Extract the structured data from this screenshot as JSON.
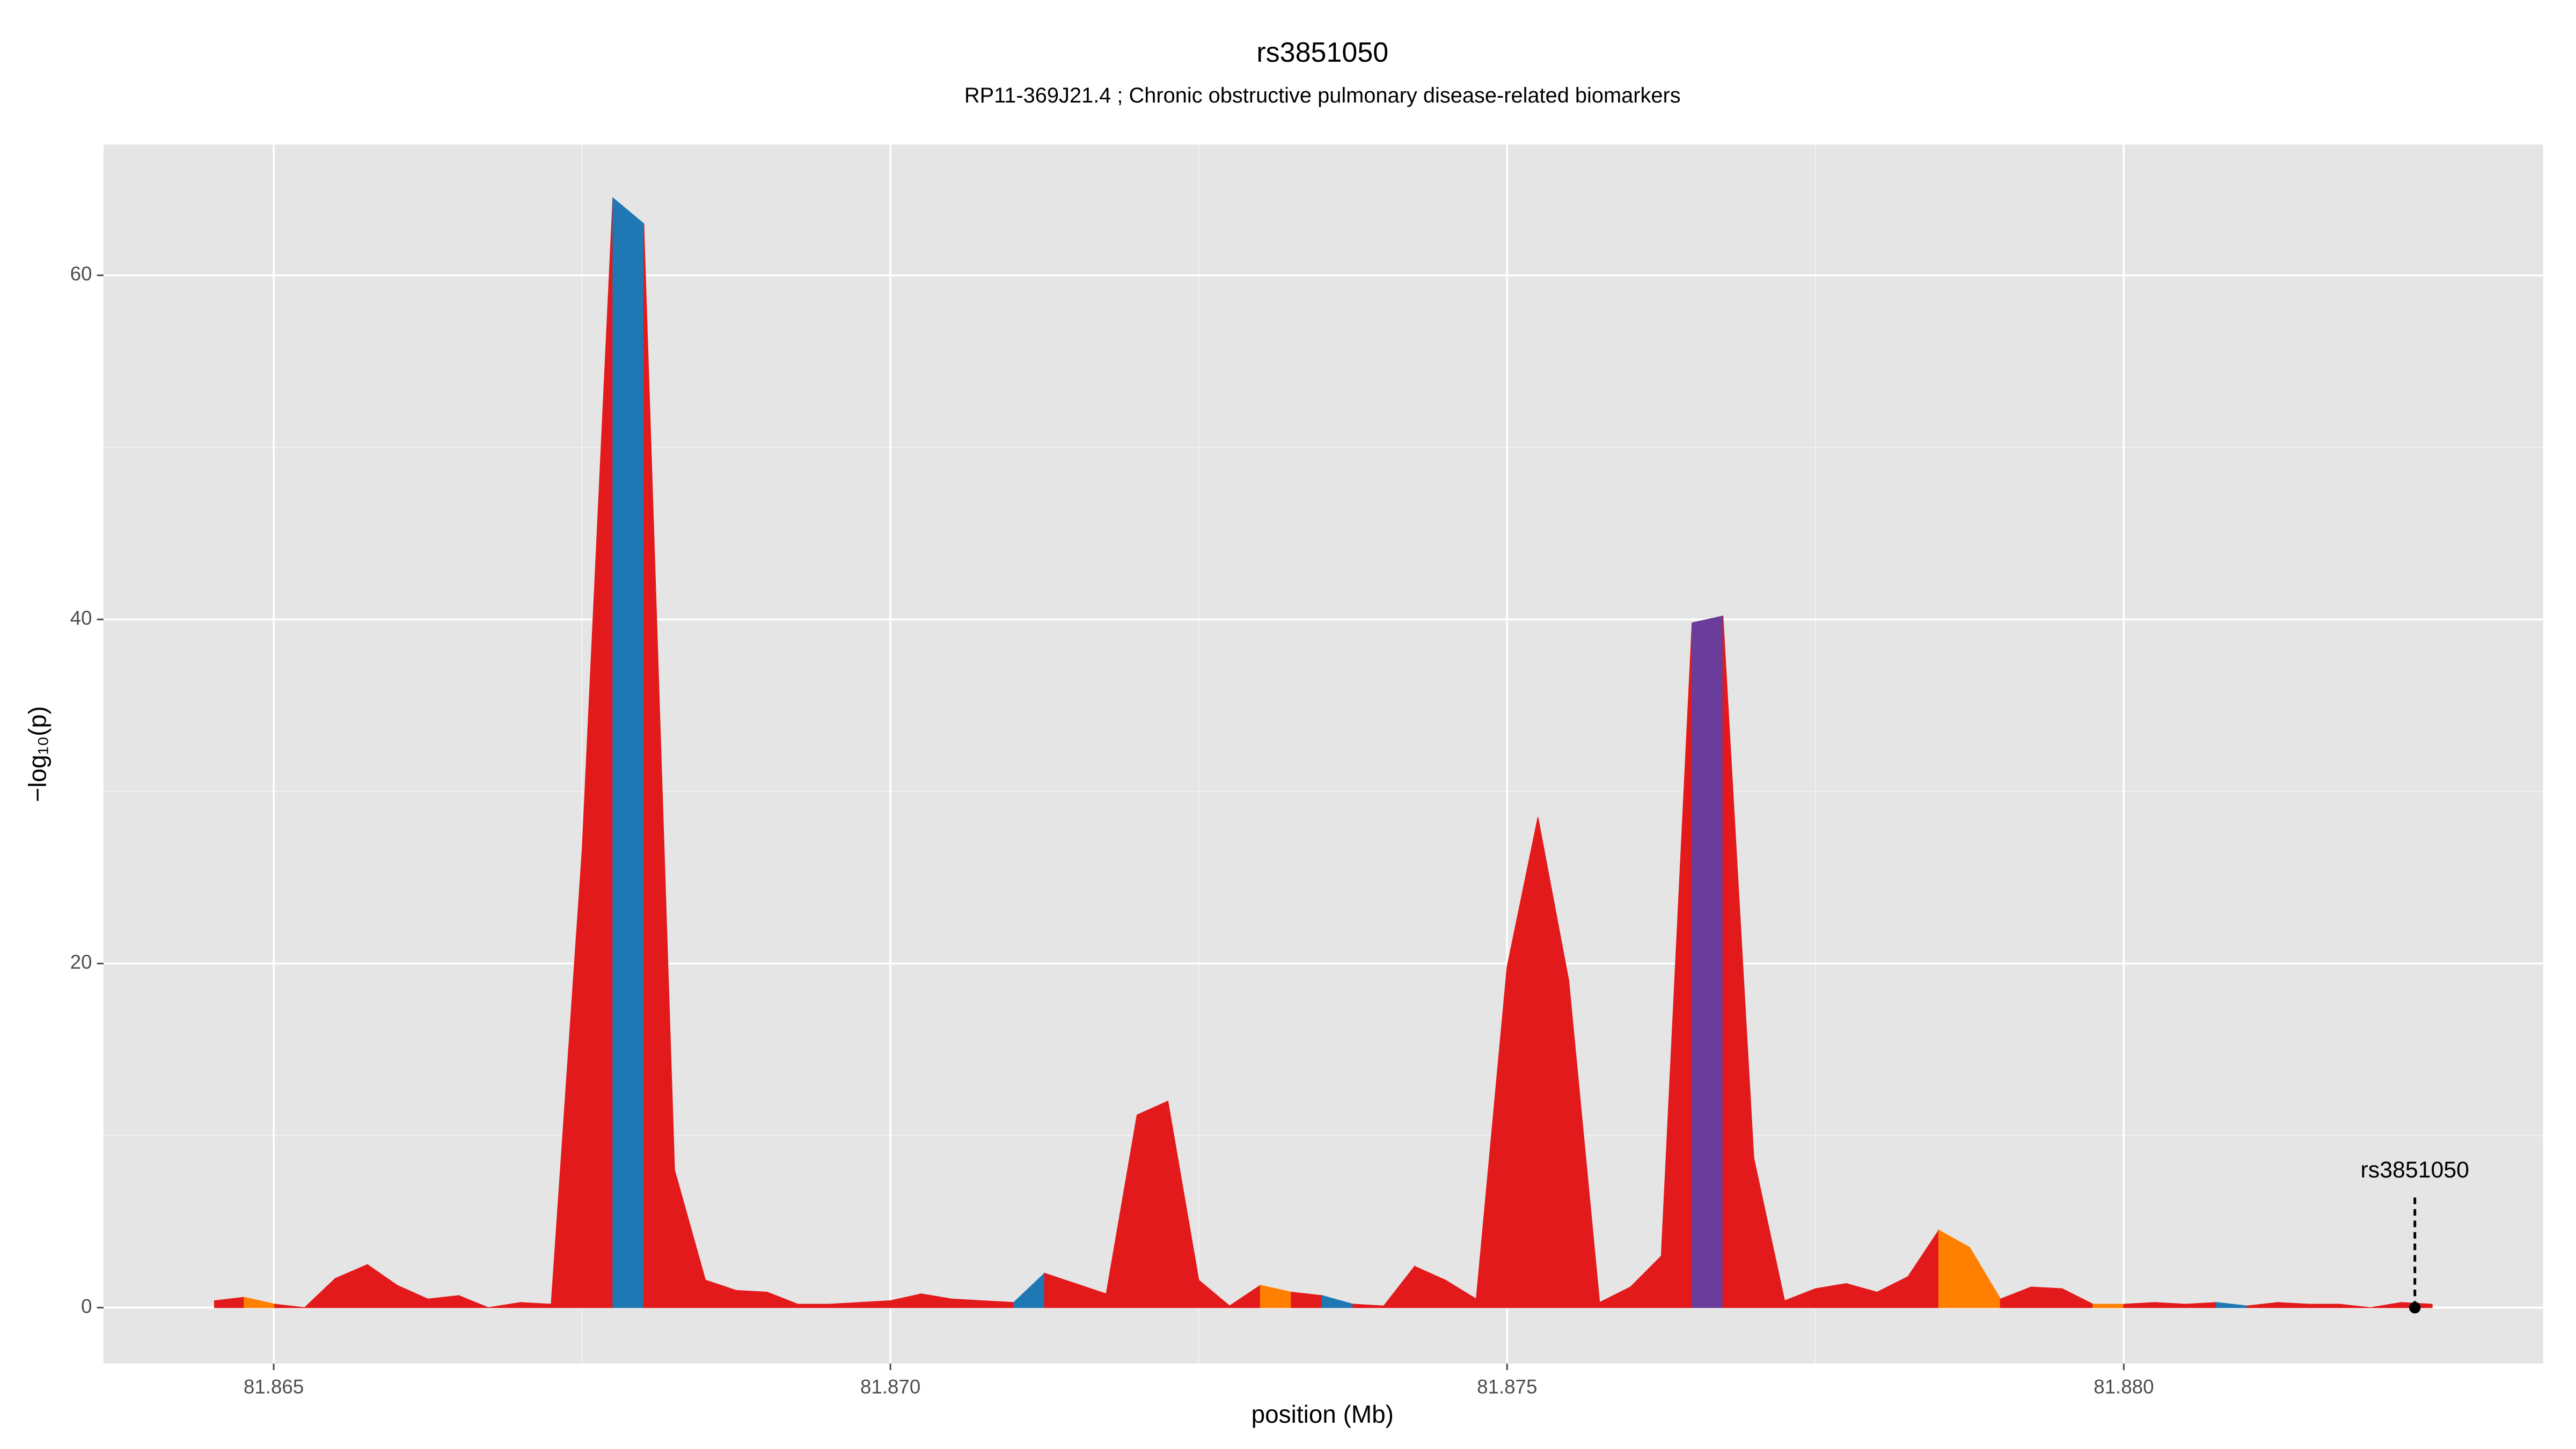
{
  "chart_data": {
    "type": "area",
    "title": "rs3851050",
    "subtitle": "RP11-369J21.4 ; Chronic obstructive pulmonary disease-related biomarkers",
    "xlabel": "position (Mb)",
    "ylabel": "−log₁₀(p)",
    "xlim": [
      81.86362,
      81.8834
    ],
    "ylim": [
      -3.25,
      67.6
    ],
    "xticks": [
      81.865,
      {
        "value": 81.87,
        "label": "81.870"
      },
      81.875,
      {
        "value": 81.88,
        "label": "81.880"
      }
    ],
    "yticks": [
      0,
      20,
      40,
      60
    ],
    "grid": true,
    "x": [
      81.86452,
      81.86476,
      81.86501,
      81.86525,
      81.8655,
      81.86576,
      81.866,
      81.86625,
      81.8665,
      81.86674,
      81.867,
      81.86725,
      81.8675,
      81.86775,
      81.868,
      81.86825,
      81.8685,
      81.86875,
      81.869,
      81.86925,
      81.8695,
      81.86975,
      81.87,
      81.87025,
      81.8705,
      81.87075,
      81.871,
      81.87125,
      81.8715,
      81.87175,
      81.872,
      81.87225,
      81.8725,
      81.87275,
      81.873,
      81.87325,
      81.8735,
      81.87375,
      81.874,
      81.87425,
      81.8745,
      81.87475,
      81.875,
      81.87525,
      81.8755,
      81.87575,
      81.876,
      81.87625,
      81.8765,
      81.87675,
      81.877,
      81.87725,
      81.8775,
      81.87775,
      81.878,
      81.87825,
      81.8785,
      81.87875,
      81.879,
      81.87925,
      81.8795,
      81.87975,
      81.88,
      81.88025,
      81.8805,
      81.88075,
      81.881,
      81.88125,
      81.8815,
      81.88175,
      81.882,
      81.88225,
      81.8825
    ],
    "values": [
      0.4,
      0.6,
      0.2,
      0,
      1.7,
      2.5,
      1.3,
      0.5,
      0.7,
      0,
      0.3,
      0.2,
      26.5,
      64.5,
      63,
      8,
      1.6,
      1.0,
      0.9,
      0.2,
      0.2,
      0.3,
      0.4,
      0.8,
      0.5,
      0.4,
      0.3,
      2.0,
      1.4,
      0.8,
      11.2,
      12,
      1.6,
      0.1,
      1.3,
      0.9,
      0.7,
      0.2,
      0.1,
      2.4,
      1.6,
      0.5,
      19.8,
      28.5,
      19,
      0.3,
      1.2,
      3.0,
      39.8,
      40.2,
      8.7,
      0.4,
      1.1,
      1.4,
      0.9,
      1.8,
      4.5,
      3.5,
      0.5,
      1.2,
      1.1,
      0.2,
      0.2,
      0.3,
      0.2,
      0.3,
      0.1,
      0.3,
      0.2,
      0.2,
      0.0,
      0.3,
      0.2
    ],
    "segment_colors": [
      "#e31a1c",
      "#ff7f00",
      "#e31a1c",
      "#e31a1c",
      "#e31a1c",
      "#e31a1c",
      "#e31a1c",
      "#e31a1c",
      "#e31a1c",
      "#e31a1c",
      "#e31a1c",
      "#e31a1c",
      "#e31a1c",
      "#1f78b4",
      "#e31a1c",
      "#e31a1c",
      "#e31a1c",
      "#e31a1c",
      "#e31a1c",
      "#e31a1c",
      "#e31a1c",
      "#e31a1c",
      "#e31a1c",
      "#e31a1c",
      "#e31a1c",
      "#e31a1c",
      "#1f78b4",
      "#e31a1c",
      "#e31a1c",
      "#e31a1c",
      "#e31a1c",
      "#e31a1c",
      "#e31a1c",
      "#e31a1c",
      "#ff7f00",
      "#e31a1c",
      "#1f78b4",
      "#e31a1c",
      "#e31a1c",
      "#e31a1c",
      "#e31a1c",
      "#e31a1c",
      "#e31a1c",
      "#e31a1c",
      "#e31a1c",
      "#e31a1c",
      "#e31a1c",
      "#e31a1c",
      "#6a3d9a",
      "#e31a1c",
      "#e31a1c",
      "#e31a1c",
      "#e31a1c",
      "#e31a1c",
      "#e31a1c",
      "#e31a1c",
      "#ff7f00",
      "#ff7f00",
      "#e31a1c",
      "#e31a1c",
      "#e31a1c",
      "#ff7f00",
      "#e31a1c",
      "#e31a1c",
      "#e31a1c",
      "#1f78b4",
      "#e31a1c",
      "#e31a1c",
      "#e31a1c",
      "#e31a1c",
      "#e31a1c",
      "#e31a1c",
      "#e31a1c"
    ],
    "annotation": {
      "text": "rs3851050",
      "x": 81.88236,
      "y": 0
    }
  }
}
